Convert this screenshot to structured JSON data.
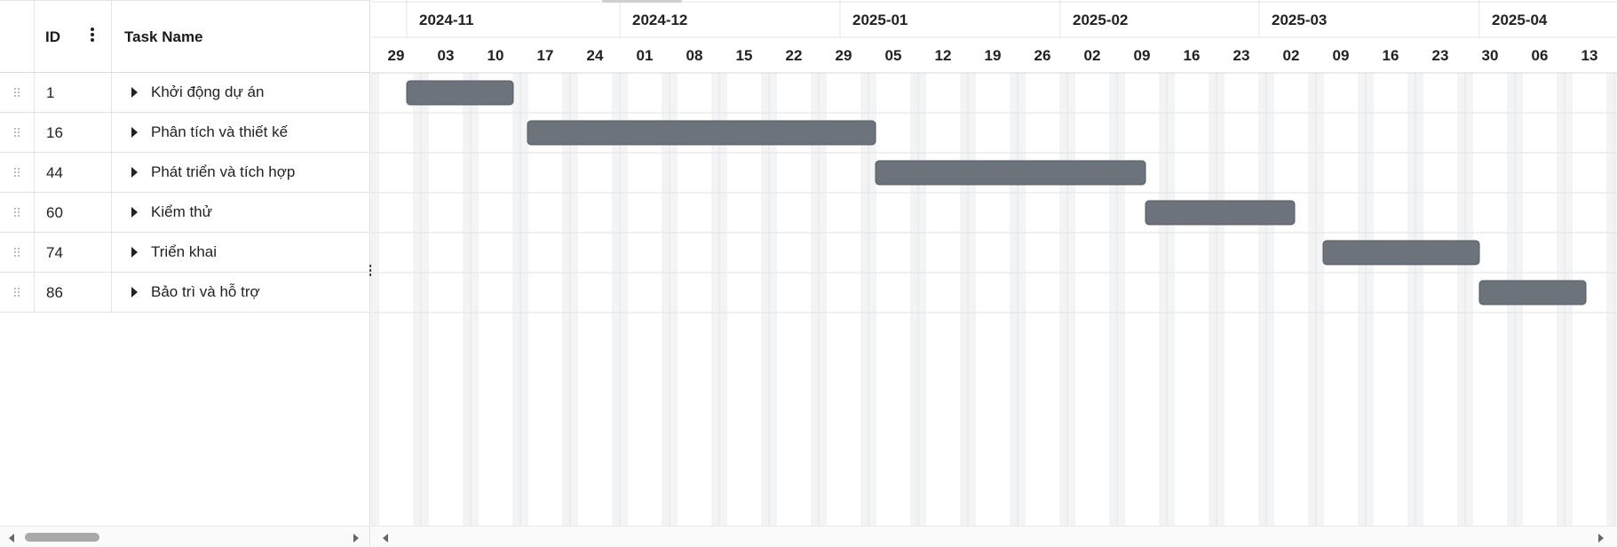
{
  "grid": {
    "columns": {
      "id": "ID",
      "name": "Task Name"
    },
    "rows": [
      {
        "id": "1",
        "name": "Khởi động dự án"
      },
      {
        "id": "16",
        "name": "Phân tích và thiết kế"
      },
      {
        "id": "44",
        "name": "Phát triển và tích hợp"
      },
      {
        "id": "60",
        "name": "Kiểm thử"
      },
      {
        "id": "74",
        "name": "Triển khai"
      },
      {
        "id": "86",
        "name": "Bảo trì và hỗ trợ"
      }
    ]
  },
  "timeline": {
    "months": [
      "2024-11",
      "2024-12",
      "2025-01",
      "2025-02",
      "2025-03",
      "2025-04"
    ],
    "weeks": [
      "29",
      "03",
      "10",
      "17",
      "24",
      "01",
      "08",
      "15",
      "22",
      "29",
      "05",
      "12",
      "19",
      "26",
      "02",
      "09",
      "16",
      "23",
      "02",
      "09",
      "16",
      "23",
      "30",
      "06",
      "13"
    ],
    "bars": [
      {
        "task_id": "1",
        "start": "2024-11-01",
        "end": "2024-11-16"
      },
      {
        "task_id": "16",
        "start": "2024-11-18",
        "end": "2025-01-06"
      },
      {
        "task_id": "44",
        "start": "2025-01-06",
        "end": "2025-02-13"
      },
      {
        "task_id": "60",
        "start": "2025-02-13",
        "end": "2025-03-06"
      },
      {
        "task_id": "74",
        "start": "2025-03-10",
        "end": "2025-04-01"
      },
      {
        "task_id": "86",
        "start": "2025-04-01",
        "end": "2025-04-16"
      }
    ]
  },
  "colors": {
    "bar_fill": "#6c737b",
    "bar_stroke": "#555b62",
    "grid_line": "#e4e4e4",
    "weekend_shade": "#f3f4f6"
  },
  "icons": {
    "row_drag": "drag-handle-icon",
    "expand": "caret-right-icon",
    "column_menu": "kebab-menu-icon",
    "splitter": "vertical-ellipsis-icon"
  }
}
